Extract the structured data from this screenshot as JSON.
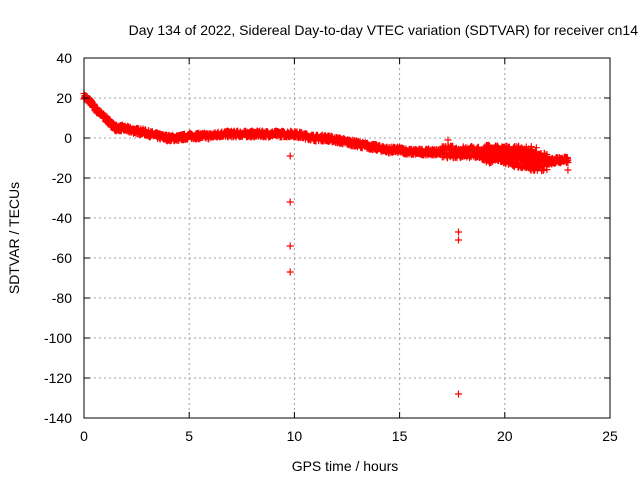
{
  "chart_data": {
    "type": "scatter",
    "title": "Day 134 of 2022, Sidereal Day-to-day VTEC variation (SDTVAR) for receiver cn14",
    "xlabel": "GPS time / hours",
    "ylabel": "SDTVAR / TECUs",
    "xlim": [
      0,
      25
    ],
    "ylim": [
      -140,
      40
    ],
    "xticks": [
      0,
      5,
      10,
      15,
      20,
      25
    ],
    "yticks": [
      40,
      20,
      0,
      -20,
      -40,
      -60,
      -80,
      -100,
      -120,
      -140
    ],
    "grid": true,
    "marker": "+",
    "color": "#ff0000",
    "series": [
      {
        "name": "SDTVAR",
        "trend": [
          [
            0.0,
            21
          ],
          [
            0.3,
            18
          ],
          [
            0.6,
            14
          ],
          [
            0.9,
            11
          ],
          [
            1.2,
            8
          ],
          [
            1.5,
            5
          ],
          [
            1.8,
            5
          ],
          [
            2.2,
            4
          ],
          [
            2.8,
            3
          ],
          [
            3.5,
            1
          ],
          [
            4.0,
            0
          ],
          [
            4.5,
            0
          ],
          [
            5.0,
            1
          ],
          [
            5.5,
            1
          ],
          [
            6.0,
            1
          ],
          [
            6.5,
            2
          ],
          [
            7.0,
            2
          ],
          [
            7.5,
            2
          ],
          [
            8.0,
            2
          ],
          [
            8.5,
            2
          ],
          [
            9.0,
            2
          ],
          [
            9.5,
            2
          ],
          [
            10.0,
            2
          ],
          [
            10.5,
            1
          ],
          [
            11.0,
            0
          ],
          [
            11.5,
            0
          ],
          [
            12.0,
            -1
          ],
          [
            12.5,
            -2
          ],
          [
            13.0,
            -3
          ],
          [
            13.5,
            -4
          ],
          [
            14.0,
            -5
          ],
          [
            14.5,
            -6
          ],
          [
            15.0,
            -6
          ],
          [
            15.5,
            -7
          ],
          [
            16.0,
            -7
          ],
          [
            16.5,
            -7
          ],
          [
            17.0,
            -7
          ],
          [
            17.5,
            -7
          ],
          [
            18.0,
            -7
          ],
          [
            18.5,
            -7
          ],
          [
            19.0,
            -8
          ],
          [
            19.5,
            -8
          ],
          [
            20.0,
            -9
          ],
          [
            20.5,
            -10
          ],
          [
            21.0,
            -11
          ],
          [
            21.5,
            -12
          ],
          [
            22.0,
            -12
          ],
          [
            22.5,
            -11
          ],
          [
            23.0,
            -11
          ]
        ],
        "outliers": [
          [
            9.8,
            -9
          ],
          [
            9.8,
            -32
          ],
          [
            9.8,
            -54
          ],
          [
            9.8,
            -67
          ],
          [
            17.3,
            -1
          ],
          [
            17.8,
            -47
          ],
          [
            17.8,
            -51
          ],
          [
            17.8,
            -128
          ],
          [
            23.0,
            -16
          ]
        ]
      }
    ]
  }
}
